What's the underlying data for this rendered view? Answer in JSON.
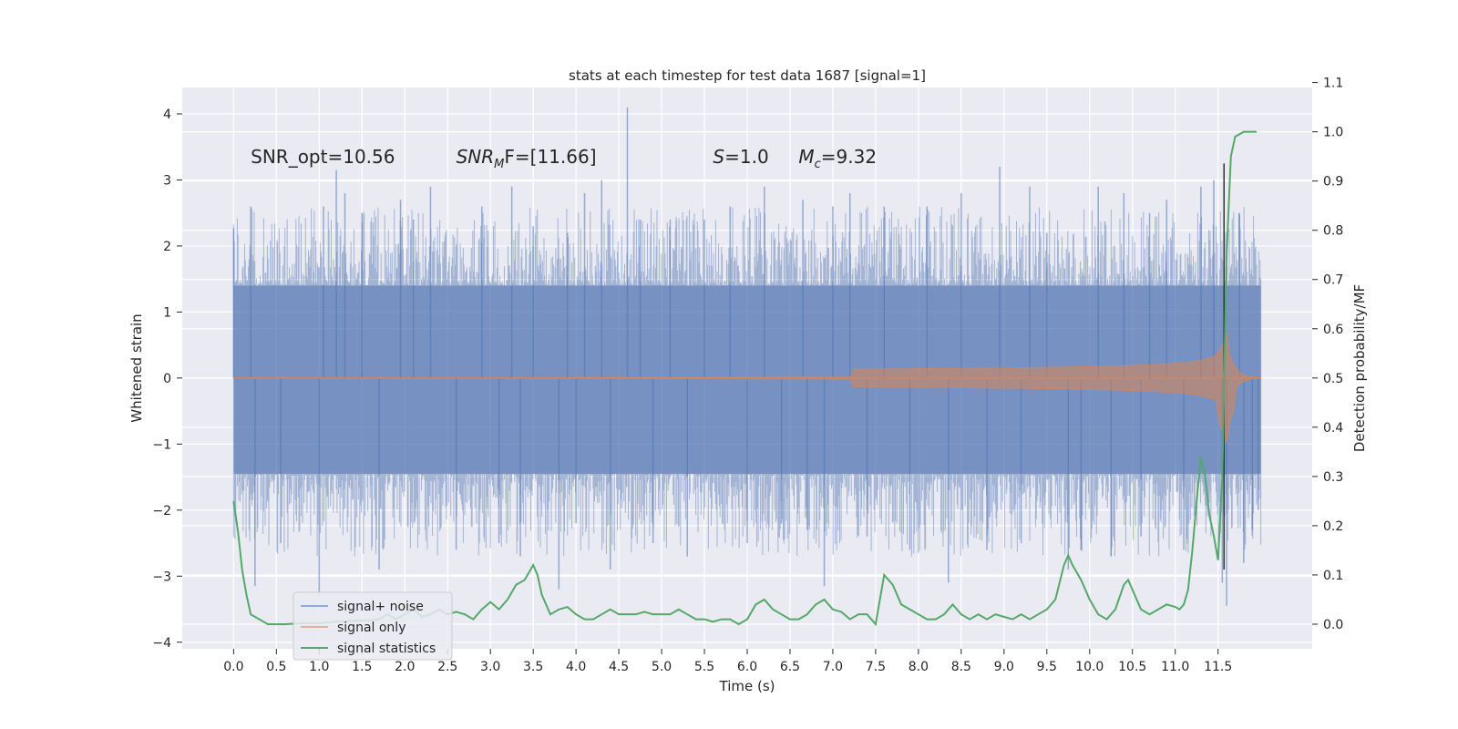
{
  "chart_data": {
    "type": "line",
    "title": "stats at each timestep for test data 1687 [signal=1]",
    "xlabel": "Time (s)",
    "ylabel": "Whitened strain",
    "y2label": "Detection probability/MF",
    "xlim": [
      -0.6,
      12.6
    ],
    "ylim": [
      -4.1,
      4.4
    ],
    "y2lim": [
      -0.05,
      1.09
    ],
    "grid": true,
    "legend_position": "lower-left",
    "x_ticks": [
      "0.0",
      "0.5",
      "1.0",
      "1.5",
      "2.0",
      "2.5",
      "3.0",
      "3.5",
      "4.0",
      "4.5",
      "5.0",
      "5.5",
      "6.0",
      "6.5",
      "7.0",
      "7.5",
      "8.0",
      "8.5",
      "9.0",
      "9.5",
      "10.0",
      "10.5",
      "11.0",
      "11.5"
    ],
    "y_ticks": [
      "4",
      "3",
      "2",
      "1",
      "0",
      "−1",
      "−2",
      "−3",
      "−4"
    ],
    "y_tick_values": [
      4,
      3,
      2,
      1,
      0,
      -1,
      -2,
      -3,
      -4
    ],
    "y2_ticks": [
      "1.1",
      "1.0",
      "0.9",
      "0.8",
      "0.7",
      "0.6",
      "0.5",
      "0.4",
      "0.3",
      "0.2",
      "0.1",
      "0.0"
    ],
    "y2_tick_values": [
      1.1,
      1.0,
      0.9,
      0.8,
      0.7,
      0.6,
      0.5,
      0.4,
      0.3,
      0.2,
      0.1,
      0.0
    ],
    "annotations": [
      {
        "text": "SNR_opt=10.56",
        "x": 0.2,
        "y": 3.35
      },
      {
        "text": "SNR",
        "sub": "M",
        "suffix": "F=[11.66]",
        "italic": true,
        "x": 2.6,
        "y": 3.35
      },
      {
        "text": "S",
        "suffix": "=1.0",
        "italic": true,
        "x": 5.6,
        "y": 3.35
      },
      {
        "text": "M",
        "sub": "c",
        "suffix": "=9.32",
        "italic": true,
        "x": 6.6,
        "y": 3.35
      }
    ],
    "merger_time": 11.57,
    "series": [
      {
        "name": "signal+ noise",
        "color": "#4c72b0",
        "x_range": [
          0,
          12.0
        ],
        "band": [
          -1.45,
          1.4
        ],
        "peaks": [
          [
            0.0,
            2.27
          ],
          [
            0.2,
            2.6
          ],
          [
            0.25,
            -3.15
          ],
          [
            0.55,
            -2.5
          ],
          [
            1.0,
            -3.3
          ],
          [
            1.05,
            2.6
          ],
          [
            1.2,
            3.15
          ],
          [
            1.3,
            2.8
          ],
          [
            1.5,
            2.5
          ],
          [
            1.7,
            -2.9
          ],
          [
            1.95,
            2.7
          ],
          [
            2.1,
            2.4
          ],
          [
            2.3,
            2.9
          ],
          [
            2.6,
            -2.6
          ],
          [
            2.9,
            2.6
          ],
          [
            3.1,
            -2.5
          ],
          [
            3.25,
            2.9
          ],
          [
            3.35,
            -2.7
          ],
          [
            3.5,
            2.3
          ],
          [
            3.8,
            -3.2
          ],
          [
            3.9,
            2.2
          ],
          [
            4.0,
            -2.2
          ],
          [
            4.1,
            2.8
          ],
          [
            4.3,
            3.0
          ],
          [
            4.4,
            -2.9
          ],
          [
            4.6,
            4.1
          ],
          [
            4.75,
            2.4
          ],
          [
            4.9,
            -2.5
          ],
          [
            5.1,
            2.4
          ],
          [
            5.3,
            -2.7
          ],
          [
            5.5,
            2.4
          ],
          [
            5.8,
            2.6
          ],
          [
            6.0,
            -2.5
          ],
          [
            6.2,
            2.9
          ],
          [
            6.4,
            -2.2
          ],
          [
            6.65,
            2.7
          ],
          [
            6.7,
            -2.3
          ],
          [
            6.9,
            -3.15
          ],
          [
            7.0,
            2.6
          ],
          [
            7.2,
            2.8
          ],
          [
            7.4,
            -2.4
          ],
          [
            7.6,
            2.6
          ],
          [
            7.9,
            -2.6
          ],
          [
            8.1,
            2.6
          ],
          [
            8.35,
            -3.1
          ],
          [
            8.5,
            2.8
          ],
          [
            8.8,
            -2.6
          ],
          [
            8.95,
            3.2
          ],
          [
            9.2,
            -2.5
          ],
          [
            9.3,
            2.9
          ],
          [
            9.5,
            2.2
          ],
          [
            9.75,
            -2.9
          ],
          [
            9.9,
            -2.6
          ],
          [
            10.1,
            2.9
          ],
          [
            10.25,
            -2.7
          ],
          [
            10.4,
            2.8
          ],
          [
            10.6,
            -2.4
          ],
          [
            10.7,
            2.5
          ],
          [
            10.9,
            2.7
          ],
          [
            11.1,
            -2.6
          ],
          [
            11.3,
            2.9
          ],
          [
            11.45,
            3.0
          ],
          [
            11.55,
            -3.1
          ],
          [
            11.6,
            -3.45
          ],
          [
            11.75,
            2.5
          ],
          [
            11.8,
            -2.8
          ],
          [
            11.9,
            -2.3
          ],
          [
            11.97,
            -2.0
          ]
        ]
      },
      {
        "name": "signal only",
        "color": "#dd8452",
        "x_range": [
          0,
          12.0
        ],
        "merger_time": 11.57,
        "amplitude_at_merger": 0.8
      },
      {
        "name": "signal statistics",
        "color": "#55a868",
        "axis": "y2",
        "x": [
          0.0,
          0.05,
          0.1,
          0.15,
          0.2,
          0.3,
          0.4,
          0.6,
          0.8,
          1.0,
          1.2,
          1.4,
          1.6,
          1.7,
          1.8,
          1.9,
          2.0,
          2.1,
          2.2,
          2.3,
          2.4,
          2.5,
          2.6,
          2.7,
          2.8,
          2.9,
          3.0,
          3.1,
          3.2,
          3.3,
          3.4,
          3.5,
          3.55,
          3.6,
          3.7,
          3.8,
          3.9,
          4.0,
          4.1,
          4.2,
          4.3,
          4.4,
          4.5,
          4.6,
          4.7,
          4.8,
          4.9,
          5.0,
          5.1,
          5.2,
          5.3,
          5.4,
          5.5,
          5.6,
          5.7,
          5.8,
          5.9,
          6.0,
          6.1,
          6.2,
          6.3,
          6.4,
          6.5,
          6.6,
          6.7,
          6.8,
          6.9,
          7.0,
          7.1,
          7.2,
          7.3,
          7.4,
          7.5,
          7.6,
          7.7,
          7.8,
          7.9,
          8.0,
          8.1,
          8.2,
          8.3,
          8.4,
          8.5,
          8.6,
          8.7,
          8.8,
          8.9,
          9.0,
          9.1,
          9.2,
          9.3,
          9.4,
          9.5,
          9.6,
          9.7,
          9.75,
          9.8,
          9.9,
          10.0,
          10.1,
          10.2,
          10.3,
          10.4,
          10.45,
          10.5,
          10.6,
          10.7,
          10.8,
          10.9,
          11.0,
          11.05,
          11.1,
          11.15,
          11.2,
          11.25,
          11.3,
          11.35,
          11.4,
          11.45,
          11.5,
          11.55,
          11.6,
          11.65,
          11.7,
          11.8,
          11.95
        ],
        "y": [
          0.25,
          0.19,
          0.11,
          0.06,
          0.02,
          0.01,
          0.0,
          0.0,
          0.002,
          0.002,
          0.005,
          0.007,
          0.008,
          0.01,
          0.02,
          0.01,
          0.02,
          0.03,
          0.015,
          0.02,
          0.03,
          0.02,
          0.025,
          0.02,
          0.01,
          0.03,
          0.045,
          0.03,
          0.05,
          0.08,
          0.09,
          0.12,
          0.1,
          0.06,
          0.02,
          0.03,
          0.035,
          0.02,
          0.01,
          0.01,
          0.02,
          0.03,
          0.02,
          0.02,
          0.02,
          0.025,
          0.02,
          0.02,
          0.02,
          0.03,
          0.02,
          0.01,
          0.01,
          0.005,
          0.01,
          0.01,
          0.0,
          0.01,
          0.04,
          0.05,
          0.03,
          0.02,
          0.01,
          0.01,
          0.02,
          0.04,
          0.05,
          0.03,
          0.025,
          0.01,
          0.02,
          0.02,
          0.0,
          0.1,
          0.08,
          0.04,
          0.03,
          0.02,
          0.01,
          0.01,
          0.02,
          0.04,
          0.02,
          0.01,
          0.02,
          0.01,
          0.02,
          0.015,
          0.01,
          0.02,
          0.01,
          0.02,
          0.03,
          0.05,
          0.12,
          0.14,
          0.12,
          0.09,
          0.05,
          0.02,
          0.01,
          0.03,
          0.08,
          0.09,
          0.07,
          0.03,
          0.02,
          0.03,
          0.04,
          0.035,
          0.03,
          0.04,
          0.07,
          0.15,
          0.25,
          0.34,
          0.3,
          0.22,
          0.18,
          0.13,
          0.3,
          0.75,
          0.95,
          0.99,
          1.0,
          1.0
        ]
      }
    ]
  }
}
